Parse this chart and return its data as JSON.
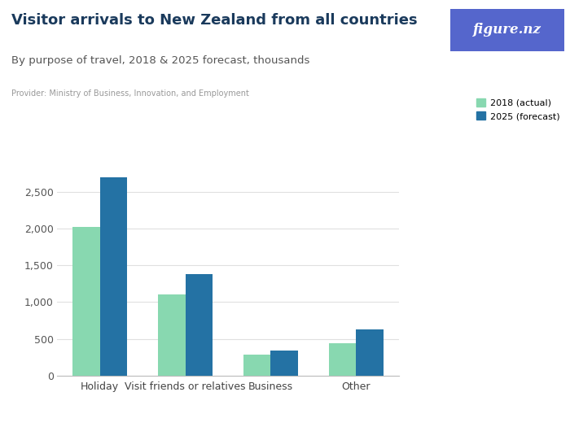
{
  "title": "Visitor arrivals to New Zealand from all countries",
  "subtitle": "By purpose of travel, 2018 & 2025 forecast, thousands",
  "provider": "Provider: Ministry of Business, Innovation, and Employment",
  "categories": [
    "Holiday",
    "Visit friends or relatives",
    "Business",
    "Other"
  ],
  "values_2018": [
    2020,
    1100,
    285,
    440
  ],
  "values_2025": [
    2700,
    1380,
    340,
    630
  ],
  "color_2018": "#88D8B0",
  "color_2025": "#2472A4",
  "legend_2018": "2018 (actual)",
  "legend_2025": "2025 (forecast)",
  "ylim": [
    0,
    2900
  ],
  "yticks": [
    0,
    500,
    1000,
    1500,
    2000,
    2500
  ],
  "background_color": "#ffffff",
  "plot_bg_color": "#ffffff",
  "title_color": "#1a3a5c",
  "subtitle_color": "#555555",
  "provider_color": "#999999",
  "figure_nz_bg": "#5566cc",
  "figure_nz_text": "figure.nz",
  "bar_width": 0.32,
  "grid_color": "#e0e0e0"
}
